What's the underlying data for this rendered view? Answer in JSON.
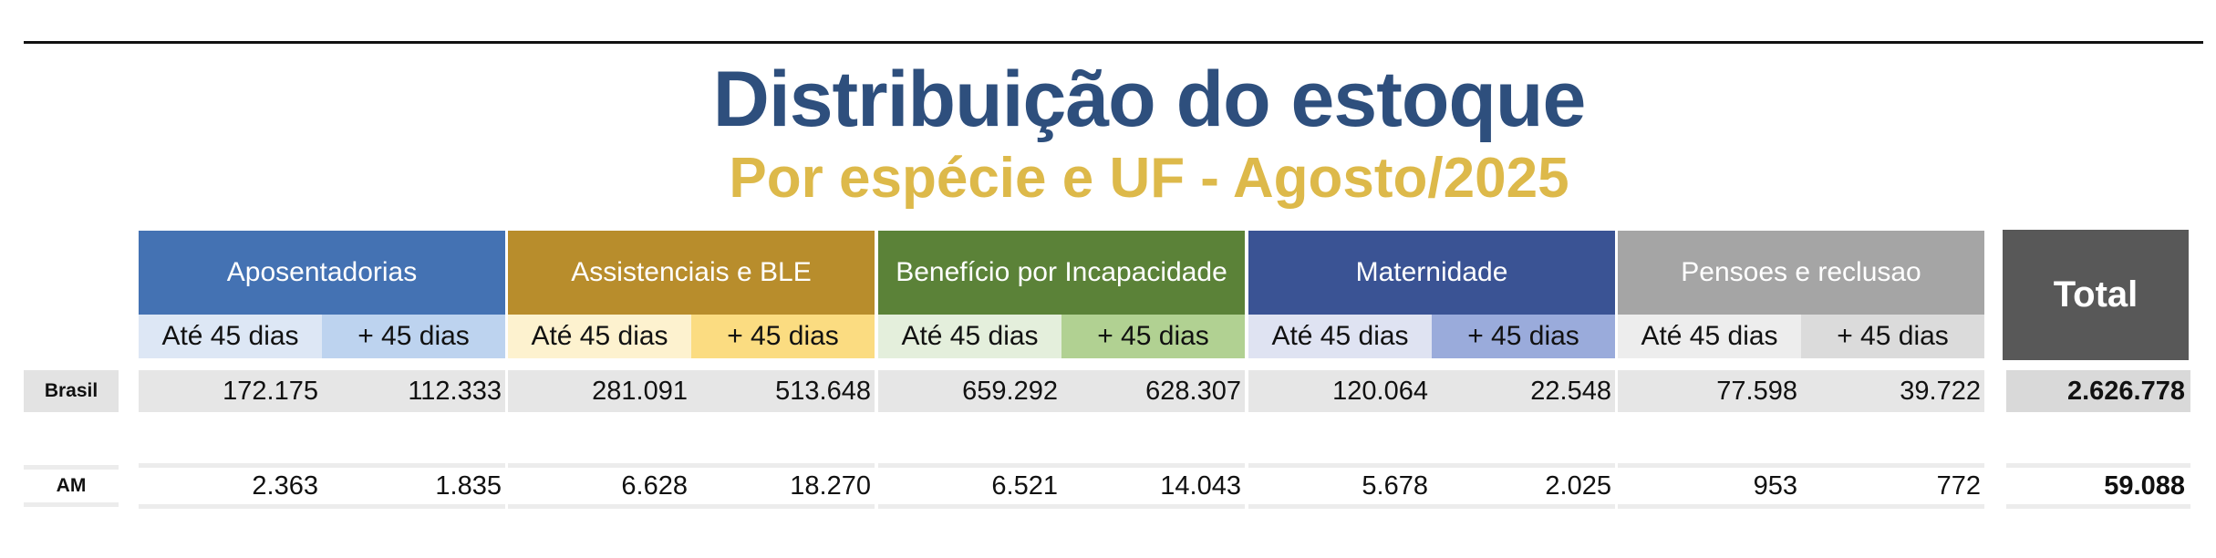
{
  "title": "Distribuição do estoque",
  "subtitle": "Por espécie e UF - Agosto/2025",
  "sub_labels": {
    "upto": "Até 45 dias",
    "over": "+ 45 dias"
  },
  "total_label": "Total",
  "colors": {
    "title": "#2e4f7d",
    "subtitle": "#ddb94a",
    "total_head": "#585858"
  },
  "groups": [
    {
      "label": "Aposentadorias",
      "head_color": "#4472b3",
      "upto_color": "#dde7f5",
      "over_color": "#bdd3ef"
    },
    {
      "label": "Assistenciais e BLE",
      "head_color": "#b88d2c",
      "upto_color": "#fdf2cf",
      "over_color": "#fbdc81"
    },
    {
      "label": "Benefício por Incapacidade",
      "head_color": "#5b8238",
      "upto_color": "#e4efdc",
      "over_color": "#b1d192"
    },
    {
      "label": "Maternidade",
      "head_color": "#3a5394",
      "upto_color": "#dfe3f2",
      "over_color": "#9aabdb"
    },
    {
      "label": "Pensoes e reclusao",
      "head_color": "#a5a5a5",
      "upto_color": "#ededed",
      "over_color": "#dbdbdb"
    }
  ],
  "rows": [
    {
      "label": "Brasil",
      "values": [
        [
          "172.175",
          "112.333"
        ],
        [
          "281.091",
          "513.648"
        ],
        [
          "659.292",
          "628.307"
        ],
        [
          "120.064",
          "22.548"
        ],
        [
          "77.598",
          "39.722"
        ]
      ],
      "total": "2.626.778"
    },
    {
      "label": "AM",
      "values": [
        [
          "2.363",
          "1.835"
        ],
        [
          "6.628",
          "18.270"
        ],
        [
          "6.521",
          "14.043"
        ],
        [
          "5.678",
          "2.025"
        ],
        [
          "953",
          "772"
        ]
      ],
      "total": "59.088"
    }
  ]
}
